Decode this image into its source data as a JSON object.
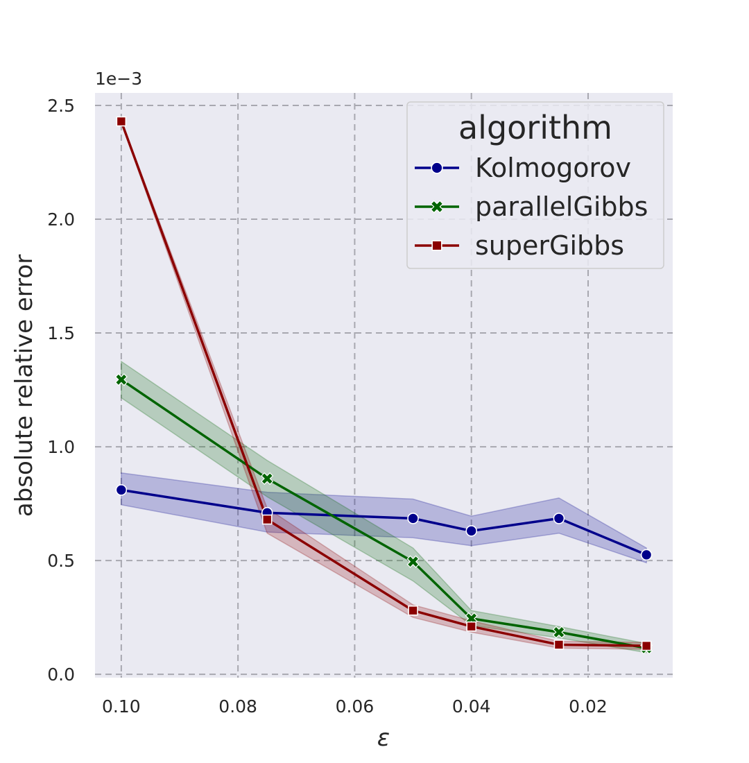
{
  "chart_data": {
    "type": "line",
    "xlabel": "ε",
    "ylabel": "absolute relative error",
    "y_offset_label": "1e−3",
    "x_inverted": true,
    "xlim": [
      0.1045,
      0.0055
    ],
    "ylim": [
      -0.015,
      2.555
    ],
    "x_ticks": [
      0.1,
      0.08,
      0.06,
      0.04,
      0.02
    ],
    "x_tick_labels": [
      "0.10",
      "0.08",
      "0.06",
      "0.04",
      "0.02"
    ],
    "y_ticks": [
      0.0,
      0.5,
      1.0,
      1.5,
      2.0,
      2.5
    ],
    "y_tick_labels": [
      "0.0",
      "0.5",
      "1.0",
      "1.5",
      "2.0",
      "2.5"
    ],
    "grid": true,
    "legend_title": "algorithm",
    "legend_position": "top-right",
    "x": [
      0.1,
      0.075,
      0.05,
      0.04,
      0.025,
      0.01
    ],
    "series": [
      {
        "name": "Kolmogorov",
        "color": "#00008b",
        "marker": "circle",
        "values": [
          0.81,
          0.71,
          0.685,
          0.63,
          0.685,
          0.525
        ],
        "ci_low": [
          0.745,
          0.625,
          0.6,
          0.565,
          0.62,
          0.49
        ],
        "ci_high": [
          0.885,
          0.8,
          0.77,
          0.695,
          0.775,
          0.555
        ]
      },
      {
        "name": "parallelGibbs",
        "color": "#006400",
        "marker": "x",
        "values": [
          1.295,
          0.86,
          0.495,
          0.245,
          0.185,
          0.115
        ],
        "ci_low": [
          1.215,
          0.78,
          0.41,
          0.215,
          0.16,
          0.095
        ],
        "ci_high": [
          1.375,
          0.94,
          0.555,
          0.28,
          0.21,
          0.135
        ]
      },
      {
        "name": "superGibbs",
        "color": "#8b0000",
        "marker": "square",
        "values": [
          2.43,
          0.68,
          0.28,
          0.21,
          0.13,
          0.125
        ],
        "ci_low": [
          2.425,
          0.62,
          0.25,
          0.185,
          0.115,
          0.11
        ],
        "ci_high": [
          2.435,
          0.73,
          0.305,
          0.235,
          0.145,
          0.14
        ]
      }
    ]
  }
}
